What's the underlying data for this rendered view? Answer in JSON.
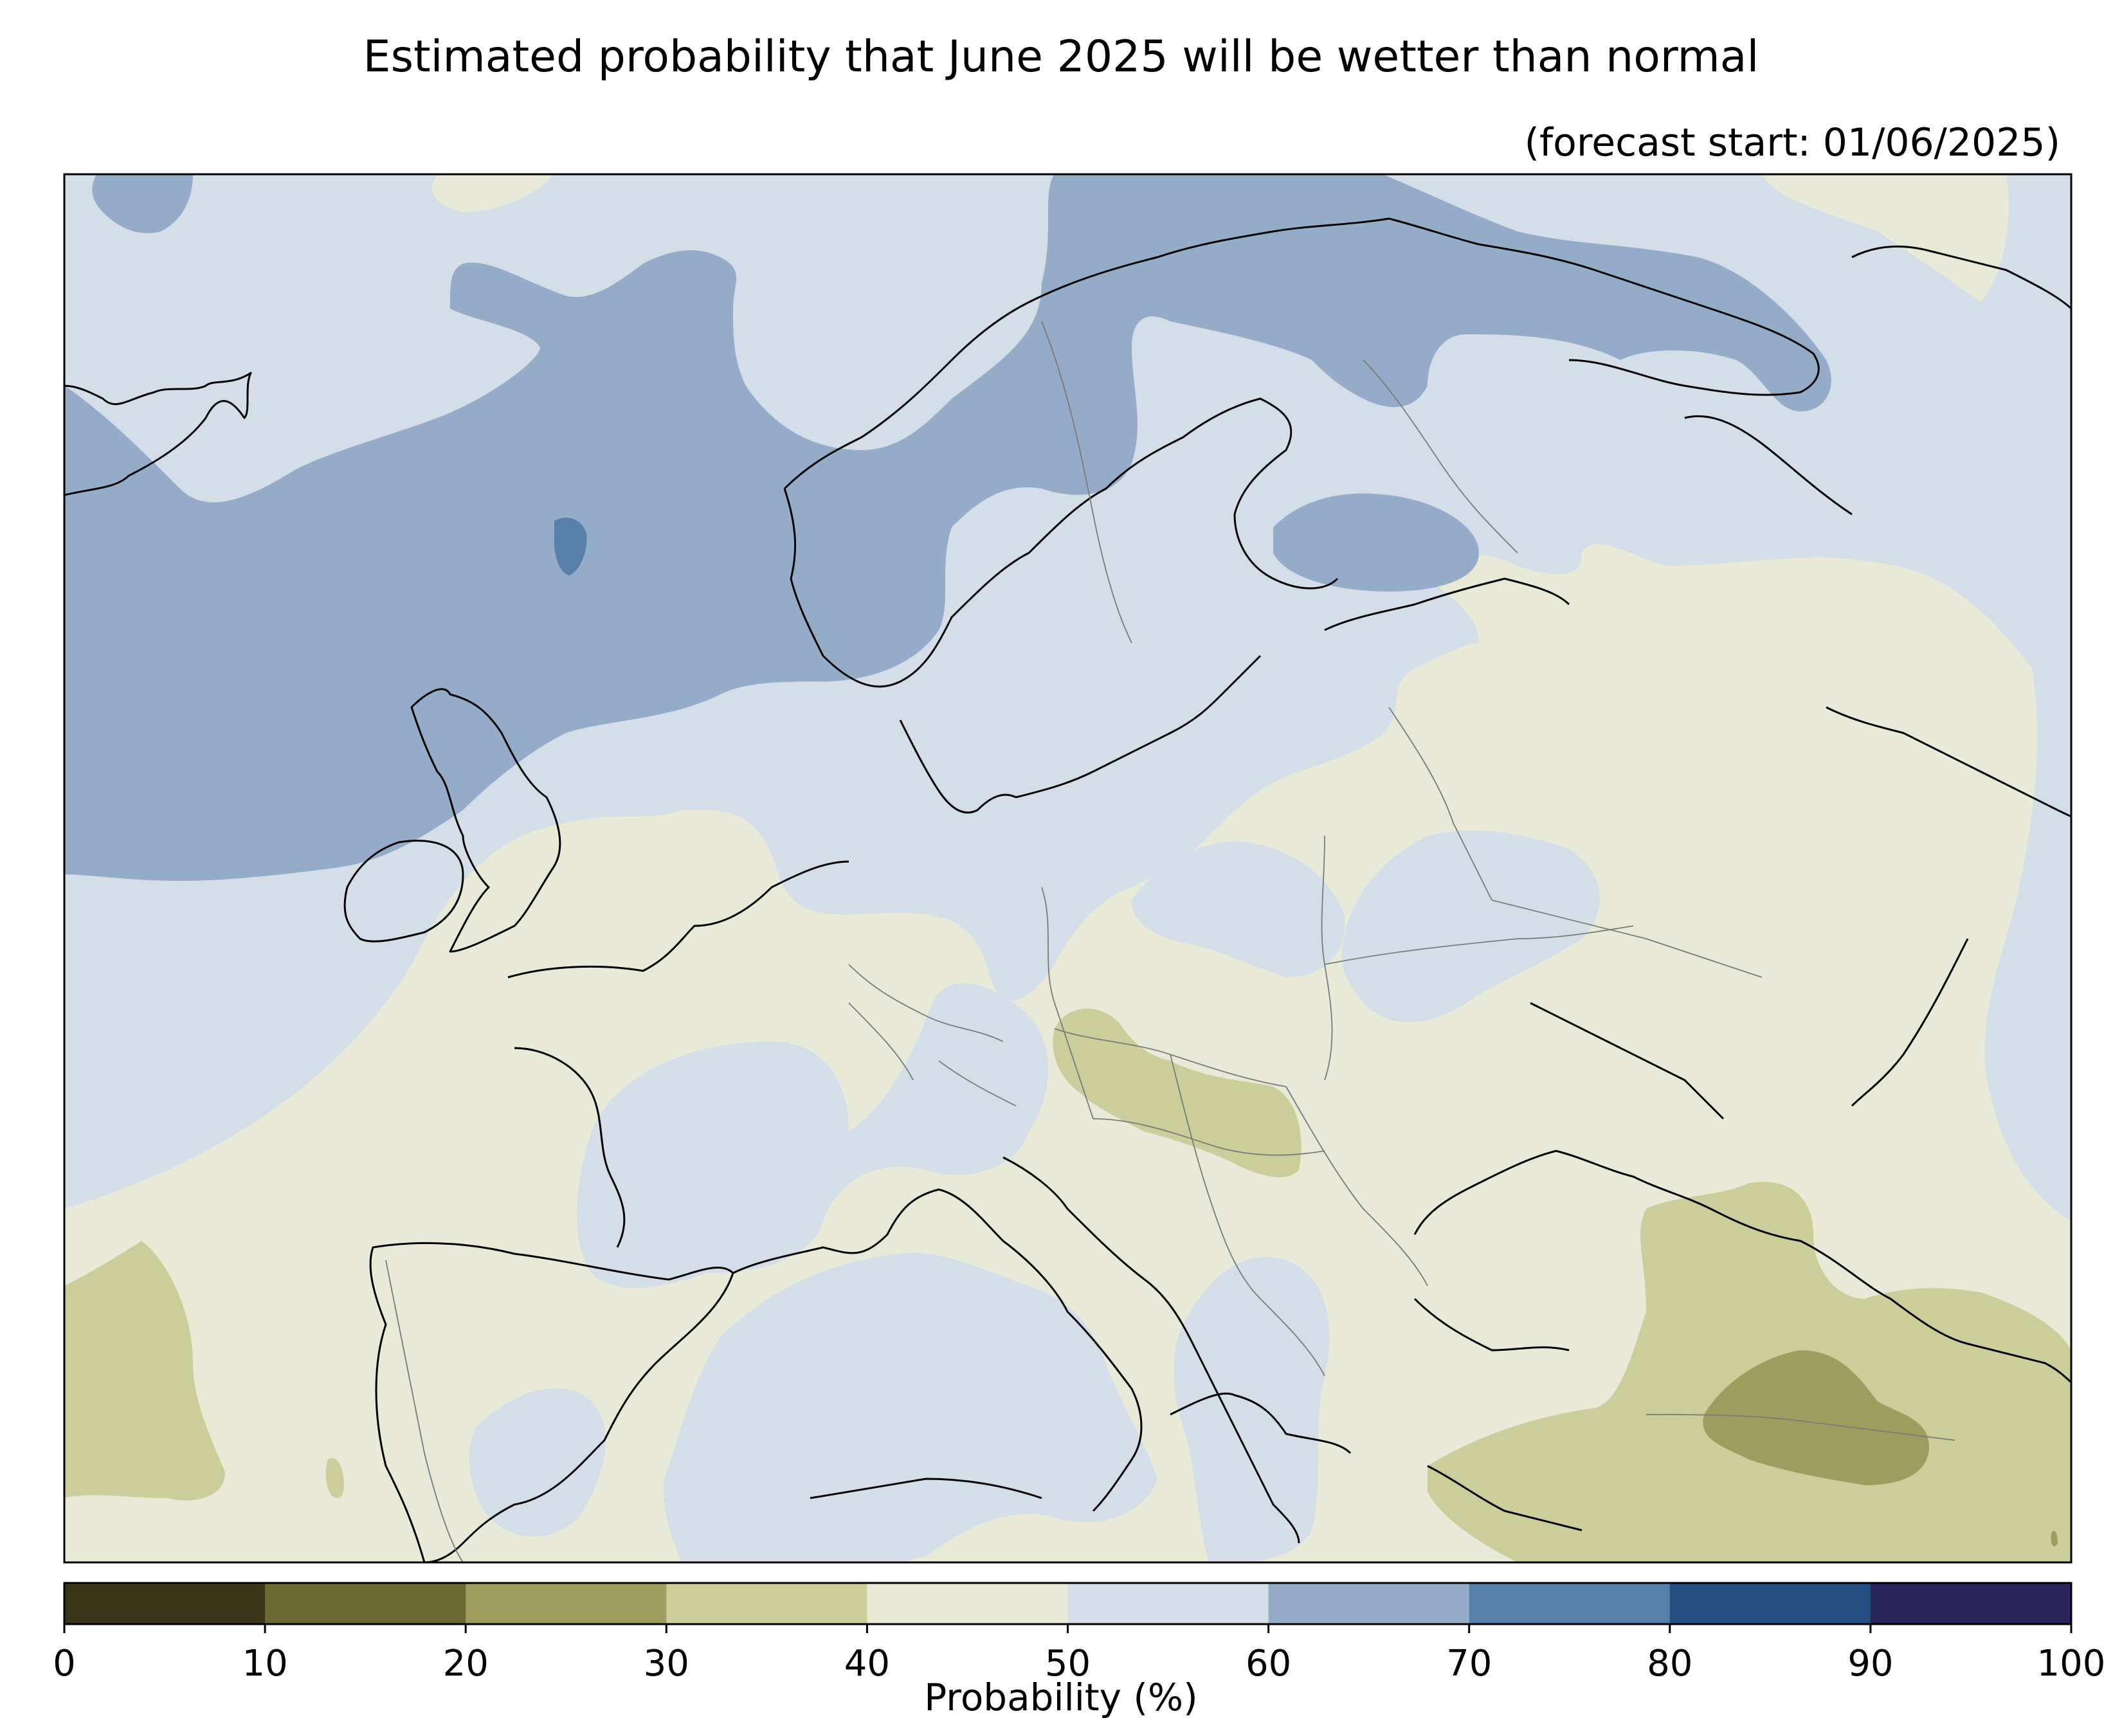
{
  "title": "Estimated probability that June 2025 will be wetter than normal",
  "subtitle": "(forecast start: 01/06/2025)",
  "colorbar": {
    "label": "Probability (%)",
    "ticks": [
      "0",
      "10",
      "20",
      "30",
      "40",
      "50",
      "60",
      "70",
      "80",
      "90",
      "100"
    ],
    "bins": [
      {
        "range": [
          0,
          10
        ],
        "color": "#39361a"
      },
      {
        "range": [
          10,
          20
        ],
        "color": "#6b6832"
      },
      {
        "range": [
          20,
          30
        ],
        "color": "#9d9d5f"
      },
      {
        "range": [
          30,
          40
        ],
        "color": "#cbcd9b"
      },
      {
        "range": [
          40,
          50
        ],
        "color": "#e8e9d6"
      },
      {
        "range": [
          50,
          60
        ],
        "color": "#d4dee9"
      },
      {
        "range": [
          60,
          70
        ],
        "color": "#94acc8"
      },
      {
        "range": [
          70,
          80
        ],
        "color": "#587fa8"
      },
      {
        "range": [
          80,
          90
        ],
        "color": "#264e80"
      },
      {
        "range": [
          90,
          100
        ],
        "color": "#2a2558"
      }
    ]
  },
  "map": {
    "region": "Europe",
    "background_bin": "50-60",
    "features": [
      "coastlines",
      "country-borders"
    ]
  }
}
